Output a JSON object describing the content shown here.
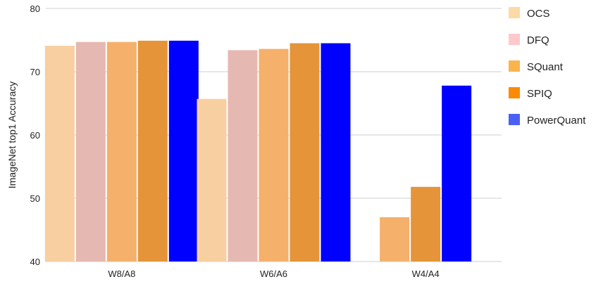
{
  "chart_data": {
    "type": "bar",
    "categories": [
      "W8/A8",
      "W6/A6",
      "W4/A4"
    ],
    "ylabel": "ImageNet top1 Accuracy",
    "xlabel": "",
    "ylim": [
      40,
      80
    ],
    "yticks": [
      40,
      50,
      60,
      70,
      80
    ],
    "grid": true,
    "legend_position": "right",
    "series": [
      {
        "name": "OCS",
        "legend_color": "#fdd9a8",
        "bar_color": "#f8cfa0",
        "values": [
          74.1,
          65.7,
          null
        ]
      },
      {
        "name": "DFQ",
        "legend_color": "#fec9cb",
        "bar_color": "#e6b8b2",
        "values": [
          74.7,
          73.4,
          null
        ]
      },
      {
        "name": "SQuant",
        "legend_color": "#fbb44c",
        "bar_color": "#f5b06b",
        "values": [
          74.7,
          73.6,
          47.0
        ]
      },
      {
        "name": "SPIQ",
        "legend_color": "#fb8b05",
        "bar_color": "#e5943a",
        "values": [
          74.9,
          74.5,
          51.8
        ]
      },
      {
        "name": "PowerQuant",
        "legend_color": "#4a60f4",
        "bar_color": "#0000ff",
        "values": [
          74.9,
          74.5,
          67.8
        ]
      }
    ]
  }
}
